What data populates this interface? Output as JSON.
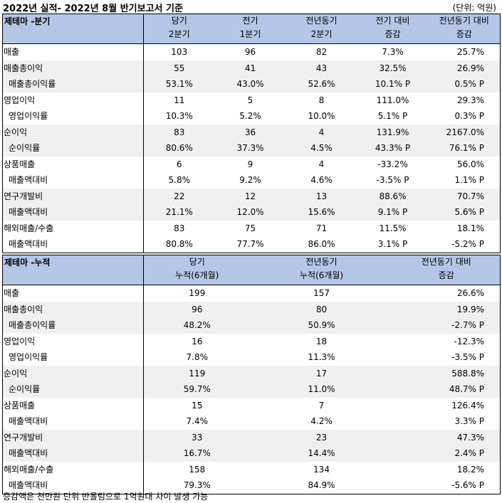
{
  "title": "2022년 실적- 2022년 8월 반기보고서 기준",
  "unit": "(단위: 억원)",
  "quarter_table": {
    "headers": [
      {
        "l1": "제테마 -분기",
        "l2": ""
      },
      {
        "l1": "당기",
        "l2": "2분기"
      },
      {
        "l1": "전기",
        "l2": "1분기"
      },
      {
        "l1": "전년동기",
        "l2": "2분기"
      },
      {
        "l1": "전기 대비",
        "l2": "증감"
      },
      {
        "l1": "전년동기 대비",
        "l2": "증감"
      }
    ],
    "rows": [
      [
        "매출",
        "103",
        "96",
        "82",
        "7.3%",
        "25.7%"
      ],
      [
        "매출총이익",
        "55",
        "41",
        "43",
        "32.5%",
        "26.9%"
      ],
      [
        "매출총이익률",
        "53.1%",
        "43.0%",
        "52.6%",
        "10.1% P",
        "0.5% P"
      ],
      [
        "영업이익",
        "11",
        "5",
        "8",
        "111.0%",
        "29.3%"
      ],
      [
        "영업이익률",
        "10.3%",
        "5.2%",
        "10.0%",
        "5.1% P",
        "0.3% P"
      ],
      [
        "순이익",
        "83",
        "36",
        "4",
        "131.9%",
        "2167.0%"
      ],
      [
        "순이익률",
        "80.6%",
        "37.3%",
        "4.5%",
        "43.3% P",
        "76.1% P"
      ],
      [
        "상품매출",
        "6",
        "9",
        "4",
        "-33.2%",
        "56.0%"
      ],
      [
        "매출액대비",
        "5.8%",
        "9.2%",
        "4.6%",
        "-3.5% P",
        "1.1% P"
      ],
      [
        "연구개발비",
        "22",
        "12",
        "13",
        "88.6%",
        "70.7%"
      ],
      [
        "매출액대비",
        "21.1%",
        "12.0%",
        "15.6%",
        "9.1% P",
        "5.6% P"
      ],
      [
        "해외매출/수출",
        "83",
        "75",
        "71",
        "11.5%",
        "18.1%"
      ],
      [
        "매출액대비",
        "80.8%",
        "77.7%",
        "86.0%",
        "3.1% P",
        "-5.2% P"
      ]
    ]
  },
  "cumulative_table": {
    "headers": [
      {
        "l1": "제테마 -누적",
        "l2": ""
      },
      {
        "l1": "당기",
        "l2": "누적(6개월)"
      },
      {
        "l1": "전년동기",
        "l2": "누적(6개월)"
      },
      {
        "l1": "전년동기 대비",
        "l2": "증감"
      }
    ],
    "rows": [
      [
        "매출",
        "199",
        "157",
        "26.6%"
      ],
      [
        "매출총이익",
        "96",
        "80",
        "19.9%"
      ],
      [
        "매출총이익률",
        "48.2%",
        "50.9%",
        "-2.7% P"
      ],
      [
        "영업이익",
        "16",
        "18",
        "-12.3%"
      ],
      [
        "영업이익률",
        "7.8%",
        "11.3%",
        "-3.5% P"
      ],
      [
        "순이익",
        "119",
        "17",
        "588.8%"
      ],
      [
        "순이익률",
        "59.7%",
        "11.0%",
        "48.7% P"
      ],
      [
        "상품매출",
        "15",
        "7",
        "126.4%"
      ],
      [
        "매출액대비",
        "7.4%",
        "4.2%",
        "3.3% P"
      ],
      [
        "연구개발비",
        "33",
        "23",
        "47.3%"
      ],
      [
        "매출액대비",
        "16.7%",
        "14.4%",
        "2.4% P"
      ],
      [
        "해외매출/수출",
        "158",
        "134",
        "18.2%"
      ],
      [
        "매출액대비",
        "79.3%",
        "84.9%",
        "-5.6% P"
      ]
    ]
  },
  "footnote": "증감액은 천만원 단위 반올림으로 1억원대 차이 발생 가능",
  "colors": {
    "header_bg": "#b4c7e7",
    "alt_row_bg": "#f0f0f0"
  }
}
